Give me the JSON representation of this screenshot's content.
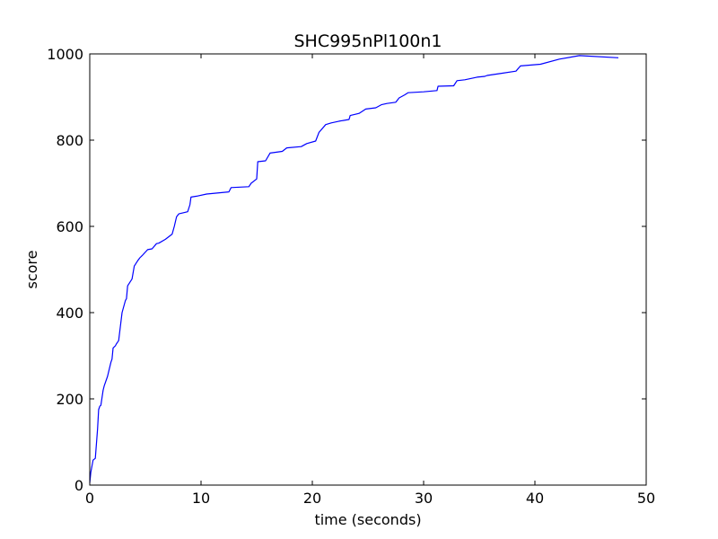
{
  "chart_data": {
    "type": "line",
    "title": "SHC995nPl100n1",
    "xlabel": "time (seconds)",
    "ylabel": "score",
    "xlim": [
      0,
      50
    ],
    "ylim": [
      0,
      1000
    ],
    "xticks": [
      0,
      10,
      20,
      30,
      40,
      50
    ],
    "yticks": [
      0,
      200,
      400,
      600,
      800,
      1000
    ],
    "xtick_labels": [
      "0",
      "10",
      "20",
      "30",
      "40",
      "50"
    ],
    "ytick_labels": [
      "0",
      "200",
      "400",
      "600",
      "800",
      "1000"
    ],
    "grid": false,
    "legend": "none",
    "series": [
      {
        "color": "#0000ff",
        "x": [
          0,
          0.1,
          0.3,
          0.5,
          0.7,
          0.8,
          0.9,
          1.0,
          1.2,
          1.3,
          1.6,
          1.9,
          2.0,
          2.1,
          2.3,
          2.4,
          2.6,
          2.9,
          3.2,
          3.3,
          3.4,
          3.6,
          3.8,
          4.0,
          4.3,
          4.5,
          4.7,
          5.2,
          5.6,
          6.0,
          6.2,
          6.8,
          7.4,
          7.6,
          7.8,
          8.0,
          8.8,
          9.0,
          9.1,
          9.6,
          10.5,
          12.5,
          12.7,
          14.3,
          14.5,
          15.0,
          15.1,
          15.8,
          16.2,
          17.3,
          17.7,
          19.0,
          19.5,
          20.3,
          20.6,
          21.2,
          21.7,
          22.4,
          23.3,
          23.4,
          24.2,
          24.8,
          25.7,
          26.2,
          26.7,
          27.5,
          27.8,
          28.3,
          28.6,
          30.0,
          31.2,
          31.3,
          32.7,
          33.0,
          33.7,
          34.8,
          35.5,
          35.7,
          37.0,
          38.3,
          38.7,
          40.5,
          42.2,
          44.0,
          47.5
        ],
        "y": [
          5,
          30,
          58,
          62,
          130,
          175,
          183,
          185,
          220,
          230,
          252,
          285,
          292,
          318,
          323,
          328,
          335,
          400,
          428,
          432,
          462,
          470,
          478,
          508,
          520,
          527,
          532,
          546,
          548,
          560,
          561,
          570,
          582,
          600,
          622,
          629,
          634,
          650,
          668,
          670,
          675,
          680,
          690,
          692,
          700,
          710,
          750,
          752,
          770,
          774,
          782,
          785,
          792,
          798,
          818,
          836,
          840,
          844,
          848,
          857,
          862,
          872,
          875,
          882,
          885,
          888,
          898,
          905,
          910,
          912,
          915,
          925,
          926,
          938,
          940,
          946,
          948,
          950,
          955,
          960,
          972,
          976,
          988,
          996,
          991
        ]
      }
    ]
  }
}
